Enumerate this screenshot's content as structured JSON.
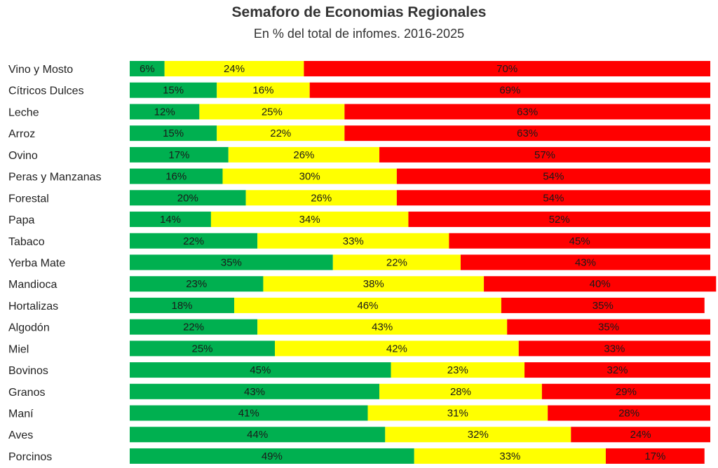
{
  "chart_data": {
    "type": "bar",
    "orientation": "horizontal",
    "stacked": true,
    "title": "Semaforo de Economias Regionales",
    "subtitle": "En % del total de infomes. 2016-2025",
    "categories": [
      "Vino y Mosto",
      "Cítricos Dulces",
      "Leche",
      "Arroz",
      "Ovino",
      "Peras y Manzanas",
      "Forestal",
      "Papa",
      "Tabaco",
      "Yerba Mate",
      "Mandioca",
      "Hortalizas",
      "Algodón",
      "Miel",
      "Bovinos",
      "Granos",
      "Maní",
      "Aves",
      "Porcinos"
    ],
    "series": [
      {
        "color": "#00b050",
        "values": [
          6,
          15,
          12,
          15,
          17,
          16,
          20,
          14,
          22,
          35,
          23,
          18,
          22,
          25,
          45,
          43,
          41,
          44,
          49
        ]
      },
      {
        "color": "#ffff00",
        "values": [
          24,
          16,
          25,
          22,
          26,
          30,
          26,
          34,
          33,
          22,
          38,
          46,
          43,
          42,
          23,
          28,
          31,
          32,
          33
        ]
      },
      {
        "color": "#ff0000",
        "values": [
          70,
          69,
          63,
          63,
          57,
          54,
          54,
          52,
          45,
          43,
          40,
          35,
          35,
          33,
          32,
          29,
          28,
          24,
          17
        ]
      }
    ],
    "value_suffix": "%",
    "xlim": [
      0,
      100
    ],
    "grid": false,
    "legend": "none"
  }
}
